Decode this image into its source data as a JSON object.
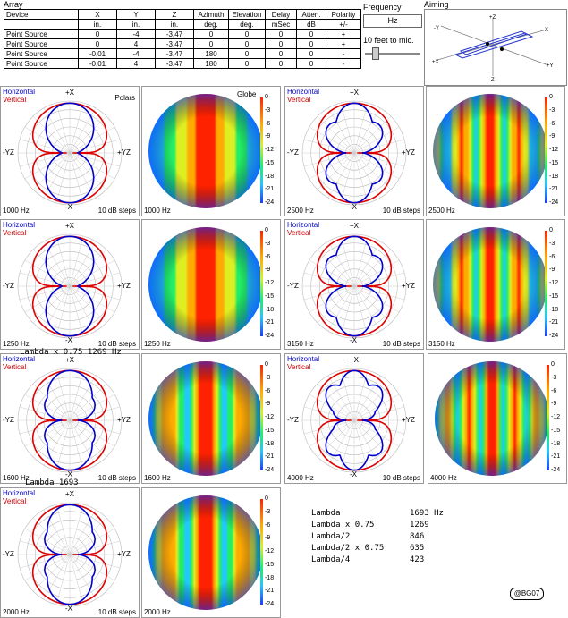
{
  "array": {
    "label": "Array",
    "headers": [
      "Device",
      "X",
      "Y",
      "Z",
      "Azimuth",
      "Elevation",
      "Delay",
      "Atten.",
      "Polarity"
    ],
    "units": [
      "",
      "in.",
      "in.",
      "in.",
      "deg.",
      "deg.",
      "mSec",
      "dB",
      "+/-"
    ],
    "rows": [
      [
        "Point Source",
        "0",
        "-4",
        "-3,47",
        "0",
        "0",
        "0",
        "0",
        "+"
      ],
      [
        "Point Source",
        "0",
        "4",
        "-3,47",
        "0",
        "0",
        "0",
        "0",
        "+"
      ],
      [
        "Point Source",
        "-0,01",
        "-4",
        "-3,47",
        "180",
        "0",
        "0",
        "0",
        "-"
      ],
      [
        "Point Source",
        "-0,01",
        "4",
        "-3,47",
        "180",
        "0",
        "0",
        "0",
        "-"
      ]
    ]
  },
  "frequency": {
    "label": "Frequency",
    "unit": "Hz",
    "distance_label": "10 feet to mic.",
    "slider_fraction": 0.15
  },
  "aiming": {
    "label": "Aiming",
    "axes": [
      "+Z",
      "-Y",
      "-X",
      "+X",
      "+Y",
      "-Z"
    ]
  },
  "legend": {
    "horizontal": "Horizontal",
    "vertical": "Vertical",
    "polars": "Polars",
    "globe": "Globe",
    "steps": "10 dB steps"
  },
  "axis_labels": {
    "top": "+X",
    "bottom": "-X",
    "left": "-YZ",
    "right": "+YZ"
  },
  "scale": [
    "0",
    "-3",
    "-6",
    "-9",
    "-12",
    "-15",
    "-18",
    "-21",
    "-24"
  ],
  "panels": [
    {
      "freq": "1000 Hz",
      "lobes": 1
    },
    {
      "freq": "2500 Hz",
      "lobes": 3
    },
    {
      "freq": "1250 Hz",
      "lobes": 1
    },
    {
      "freq": "3150 Hz",
      "lobes": 3
    },
    {
      "freq": "1600 Hz",
      "lobes": 2
    },
    {
      "freq": "4000 Hz",
      "lobes": 4
    },
    {
      "freq": "2000 Hz",
      "lobes": 2
    }
  ],
  "captions": {
    "c1": "Lambda x 0.75   1269 Hz",
    "c2": "Lambda         1693"
  },
  "lambda_table": [
    {
      "name": "Lambda",
      "value": "1693 Hz"
    },
    {
      "name": "Lambda x 0.75",
      "value": "1269"
    },
    {
      "name": "Lambda/2",
      "value": "846"
    },
    {
      "name": "Lambda/2 x 0.75",
      "value": "635"
    },
    {
      "name": "Lambda/4",
      "value": "423"
    }
  ],
  "copyright": "@BG07",
  "colors": {
    "horizontal": "#0000cc",
    "vertical": "#dd0000"
  }
}
